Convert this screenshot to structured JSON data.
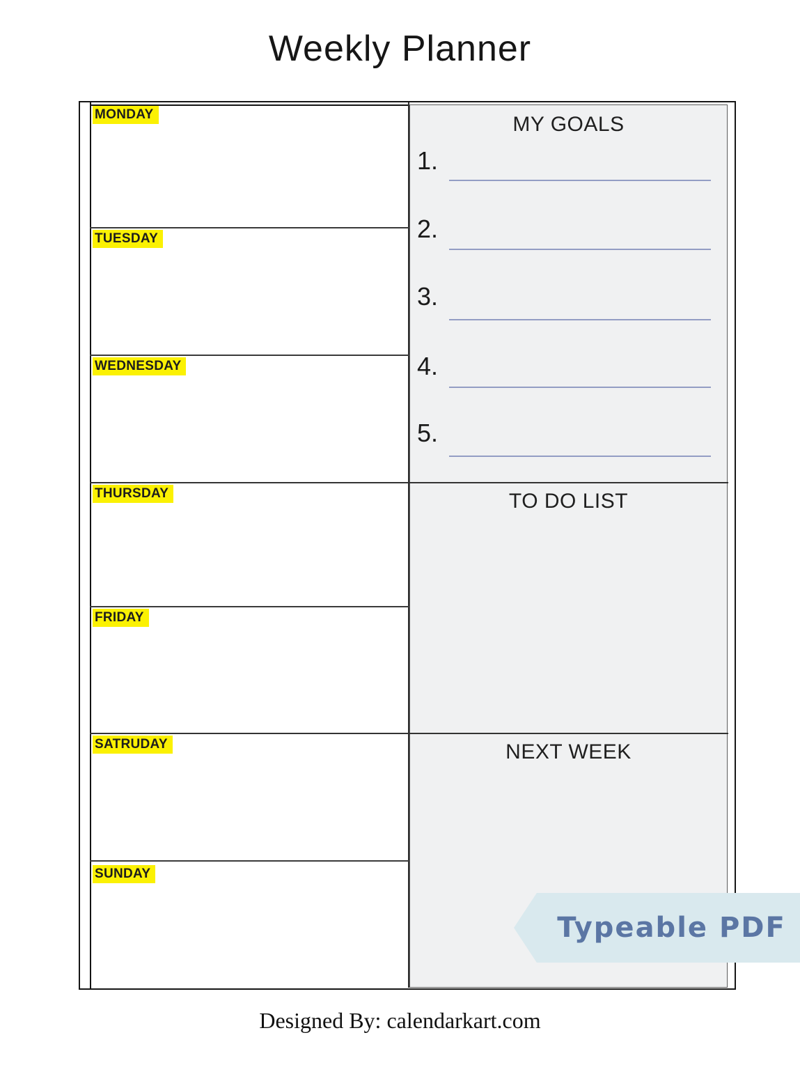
{
  "page": {
    "title": "Weekly Planner",
    "footer": "Designed By: calendarkart.com"
  },
  "week": {
    "days": [
      {
        "label": "MONDAY",
        "note": ""
      },
      {
        "label": "TUESDAY",
        "note": ""
      },
      {
        "label": "WEDNESDAY",
        "note": ""
      },
      {
        "label": "THURSDAY",
        "note": ""
      },
      {
        "label": "FRIDAY",
        "note": ""
      },
      {
        "label": "SATRUDAY",
        "note": ""
      },
      {
        "label": "SUNDAY",
        "note": ""
      }
    ]
  },
  "goals": {
    "header": "MY GOALS",
    "items": [
      {
        "number": "1.",
        "value": ""
      },
      {
        "number": "2.",
        "value": ""
      },
      {
        "number": "3.",
        "value": ""
      },
      {
        "number": "4.",
        "value": ""
      },
      {
        "number": "5.",
        "value": ""
      }
    ]
  },
  "todo": {
    "header": "TO DO LIST",
    "notes": ""
  },
  "next_week": {
    "header": "NEXT WEEK",
    "notes": ""
  },
  "badge": {
    "label": "Typeable PDF"
  },
  "colors": {
    "highlight_yellow": "#fbf103",
    "underline_blue": "#939dc4",
    "badge_bg": "#d9e9ee",
    "badge_text": "#5b76a4",
    "panel_bg": "#f0f1f2"
  }
}
